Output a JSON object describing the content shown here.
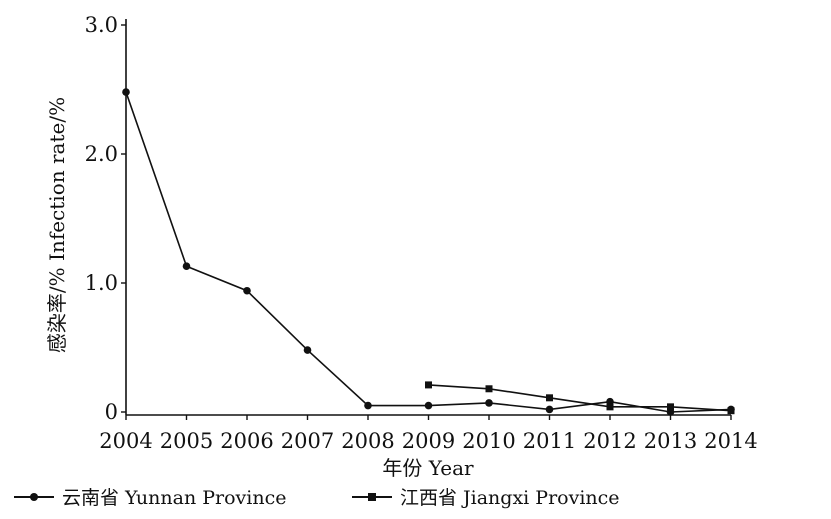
{
  "chart_data": {
    "type": "line",
    "title": "",
    "xlabel": "年份 Year",
    "ylabel": "感染率/% Infection rate/%",
    "x": [
      2004,
      2005,
      2006,
      2007,
      2008,
      2009,
      2010,
      2011,
      2012,
      2013,
      2014
    ],
    "xlim": [
      2004,
      2014
    ],
    "ylim": [
      0,
      3.0
    ],
    "x_tick_labels": [
      "2004",
      "2005",
      "2006",
      "2007",
      "2008",
      "2009",
      "2010",
      "2011",
      "2012",
      "2013",
      "2014"
    ],
    "y_tick_labels": [
      "0",
      "1.0",
      "2.0",
      "3.0"
    ],
    "y_ticks": [
      0,
      1.0,
      2.0,
      3.0
    ],
    "grid": false,
    "legend_position": "bottom",
    "series": [
      {
        "name": "云南省 Yunnan Province",
        "marker": "circle",
        "color": "#111111",
        "x": [
          2004,
          2005,
          2006,
          2007,
          2008,
          2009,
          2010,
          2011,
          2012,
          2013,
          2014
        ],
        "values": [
          2.48,
          1.13,
          0.94,
          0.48,
          0.05,
          0.05,
          0.07,
          0.02,
          0.08,
          0.0,
          0.02
        ]
      },
      {
        "name": "江西省 Jiangxi Province",
        "marker": "square",
        "color": "#111111",
        "x": [
          2009,
          2010,
          2011,
          2012,
          2013,
          2014
        ],
        "values": [
          0.21,
          0.18,
          0.11,
          0.04,
          0.04,
          0.01
        ]
      }
    ]
  }
}
